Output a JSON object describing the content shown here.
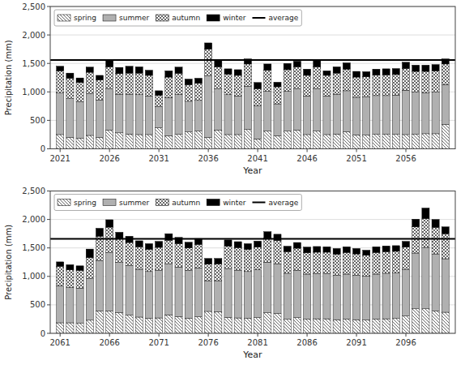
{
  "chart_data": [
    {
      "type": "bar",
      "stacked": true,
      "grid": true,
      "legend": "upper left",
      "xlabel": "Year",
      "ylabel": "Precipitation (mm)",
      "x": [
        2021,
        2022,
        2023,
        2024,
        2025,
        2026,
        2027,
        2028,
        2029,
        2030,
        2031,
        2032,
        2033,
        2034,
        2035,
        2036,
        2037,
        2038,
        2039,
        2040,
        2041,
        2042,
        2043,
        2044,
        2045,
        2046,
        2047,
        2048,
        2049,
        2050,
        2051,
        2052,
        2053,
        2054,
        2055,
        2056,
        2057,
        2058,
        2059,
        2060
      ],
      "xlim": [
        2020,
        2061
      ],
      "xticks": [
        2021,
        2026,
        2031,
        2036,
        2041,
        2046,
        2051,
        2056
      ],
      "ylim": [
        0,
        2500
      ],
      "yticks": [
        0,
        500,
        {
          "value": 1000,
          "label": "1,000"
        },
        {
          "value": 1500,
          "label": "1,500"
        },
        {
          "value": 2000,
          "label": "2,000"
        },
        {
          "value": 2500,
          "label": "2,500"
        }
      ],
      "series": [
        {
          "name": "spring",
          "color": "white",
          "values": [
            250,
            200,
            185,
            235,
            200,
            330,
            280,
            260,
            250,
            250,
            370,
            230,
            255,
            295,
            310,
            200,
            330,
            250,
            250,
            340,
            175,
            310,
            230,
            310,
            330,
            250,
            310,
            250,
            260,
            300,
            245,
            240,
            255,
            255,
            255,
            250,
            255,
            265,
            265,
            430
          ]
        },
        {
          "name": "summer",
          "color": "#b0b0b0",
          "values": [
            730,
            680,
            640,
            730,
            660,
            720,
            680,
            700,
            700,
            680,
            370,
            670,
            700,
            540,
            540,
            1080,
            720,
            700,
            680,
            760,
            580,
            700,
            560,
            700,
            720,
            680,
            740,
            680,
            700,
            720,
            660,
            670,
            680,
            680,
            690,
            780,
            740,
            720,
            730,
            700
          ]
        },
        {
          "name": "autumn",
          "color": "white",
          "values": [
            390,
            360,
            340,
            380,
            350,
            390,
            360,
            370,
            380,
            360,
            200,
            360,
            370,
            290,
            300,
            470,
            390,
            360,
            360,
            390,
            300,
            370,
            300,
            380,
            390,
            360,
            390,
            360,
            370,
            380,
            355,
            355,
            360,
            365,
            360,
            380,
            365,
            375,
            375,
            360
          ]
        },
        {
          "name": "winter",
          "color": "black",
          "values": [
            80,
            90,
            80,
            90,
            80,
            110,
            110,
            120,
            110,
            90,
            80,
            110,
            110,
            100,
            90,
            110,
            110,
            95,
            100,
            90,
            110,
            110,
            80,
            110,
            100,
            110,
            110,
            80,
            110,
            110,
            100,
            90,
            105,
            105,
            105,
            110,
            110,
            110,
            110,
            90
          ]
        }
      ],
      "reference_lines": [
        {
          "name": "average",
          "value": 1560,
          "color": "black"
        }
      ]
    },
    {
      "type": "bar",
      "stacked": true,
      "grid": true,
      "legend": "upper left",
      "xlabel": "Year",
      "ylabel": "Precipitation (mm)",
      "x": [
        2061,
        2062,
        2063,
        2064,
        2065,
        2066,
        2067,
        2068,
        2069,
        2070,
        2071,
        2072,
        2073,
        2074,
        2075,
        2076,
        2077,
        2078,
        2079,
        2080,
        2081,
        2082,
        2083,
        2084,
        2085,
        2086,
        2087,
        2088,
        2089,
        2090,
        2091,
        2092,
        2093,
        2094,
        2095,
        2096,
        2097,
        2098,
        2099,
        2100
      ],
      "xlim": [
        2060,
        2101
      ],
      "xticks": [
        2061,
        2066,
        2071,
        2076,
        2081,
        2086,
        2091,
        2096
      ],
      "ylim": [
        0,
        2500
      ],
      "yticks": [
        0,
        500,
        {
          "value": 1000,
          "label": "1,000"
        },
        {
          "value": 1500,
          "label": "1,500"
        },
        {
          "value": 2000,
          "label": "2,000"
        },
        {
          "value": 2500,
          "label": "2,500"
        }
      ],
      "series": [
        {
          "name": "spring",
          "color": "white",
          "values": [
            185,
            185,
            175,
            230,
            395,
            395,
            365,
            320,
            285,
            265,
            270,
            325,
            295,
            265,
            290,
            385,
            380,
            280,
            270,
            265,
            275,
            360,
            350,
            245,
            275,
            250,
            255,
            255,
            240,
            250,
            240,
            235,
            250,
            255,
            260,
            305,
            430,
            430,
            395,
            370
          ]
        },
        {
          "name": "summer",
          "color": "#b0b0b0",
          "values": [
            650,
            620,
            620,
            730,
            880,
            1020,
            880,
            870,
            840,
            820,
            840,
            890,
            870,
            840,
            860,
            540,
            545,
            850,
            840,
            820,
            840,
            890,
            870,
            810,
            830,
            790,
            790,
            790,
            780,
            790,
            780,
            770,
            790,
            800,
            800,
            820,
            980,
            1080,
            1000,
            940
          ]
        },
        {
          "name": "autumn",
          "color": "white",
          "values": [
            340,
            310,
            310,
            370,
            430,
            450,
            420,
            405,
            395,
            390,
            400,
            420,
            410,
            395,
            410,
            290,
            295,
            400,
            395,
            390,
            400,
            420,
            410,
            380,
            390,
            375,
            380,
            380,
            370,
            380,
            375,
            365,
            380,
            380,
            380,
            390,
            460,
            505,
            465,
            440
          ]
        },
        {
          "name": "winter",
          "color": "black",
          "values": [
            80,
            90,
            80,
            150,
            140,
            130,
            110,
            110,
            105,
            100,
            105,
            115,
            110,
            100,
            105,
            100,
            95,
            110,
            105,
            100,
            105,
            115,
            110,
            95,
            100,
            100,
            100,
            95,
            100,
            100,
            95,
            90,
            100,
            100,
            100,
            100,
            135,
            185,
            140,
            120
          ]
        }
      ],
      "reference_lines": [
        {
          "name": "average",
          "value": 1660,
          "color": "black"
        }
      ]
    }
  ]
}
